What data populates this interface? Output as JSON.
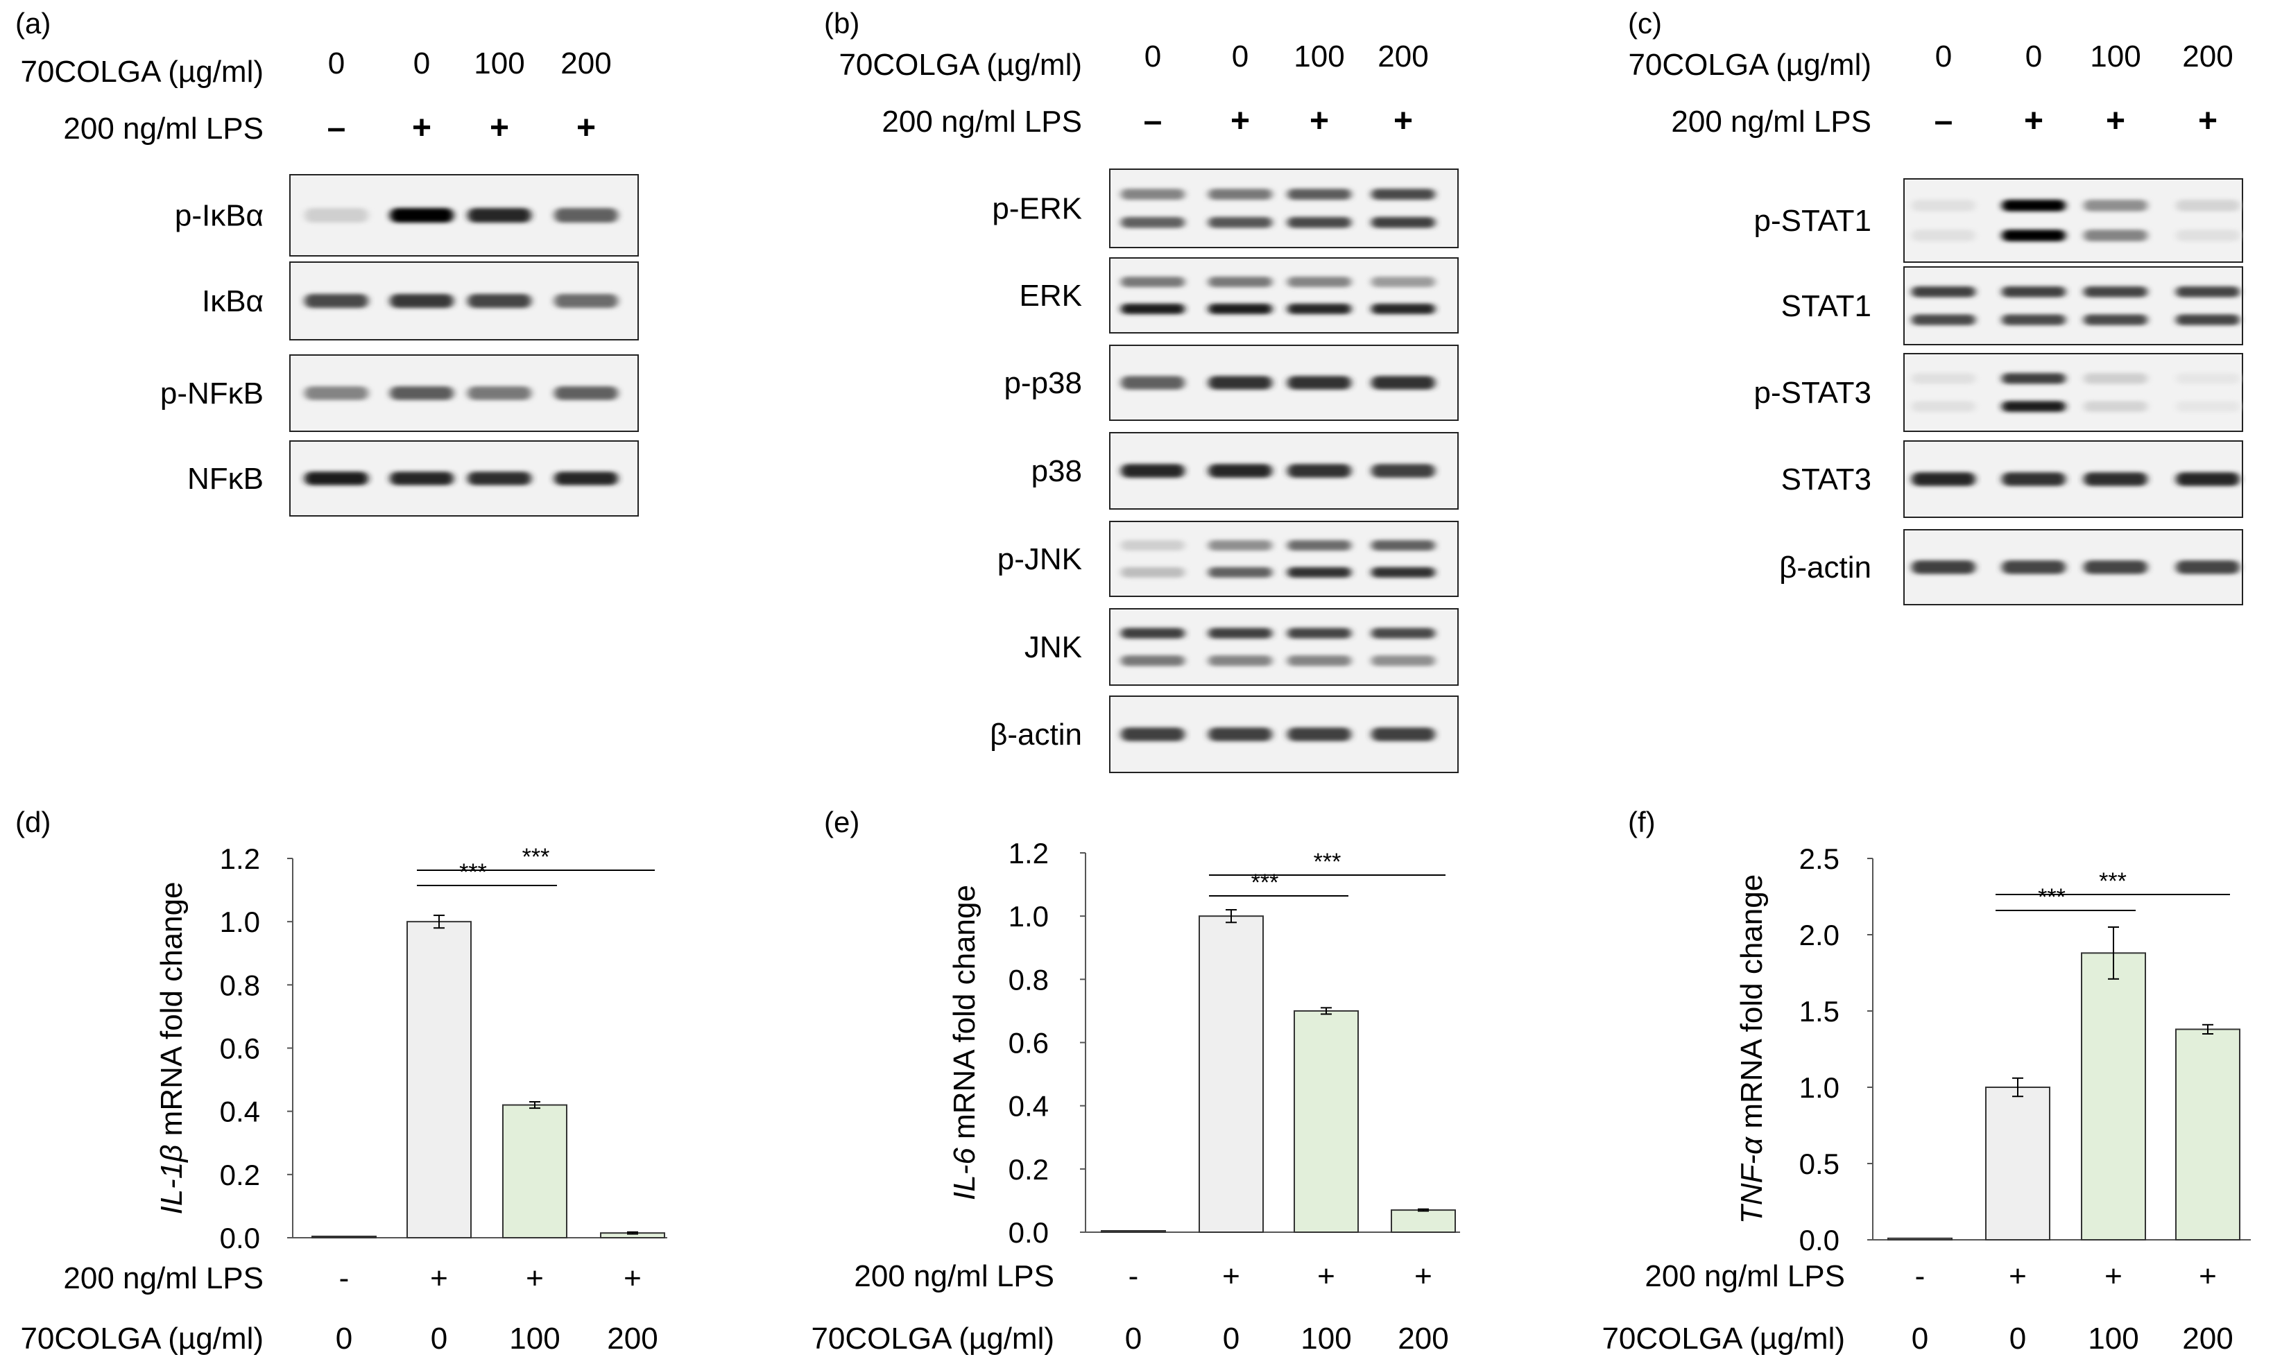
{
  "panels": [
    {
      "tag": "(a)",
      "treatment_label": "70COLGA (µg/ml)",
      "treatment_values": [
        "0",
        "0",
        "100",
        "200"
      ],
      "lps_label": "200 ng/ml LPS",
      "lps_values": [
        "-",
        "+",
        "+",
        "+"
      ],
      "blots": [
        {
          "label": "p-IκBα",
          "bands": [
            [
              0.12
            ],
            [
              1.0
            ],
            [
              0.85
            ],
            [
              0.6
            ]
          ]
        },
        {
          "label": "IκBα",
          "bands": [
            [
              0.7
            ],
            [
              0.78
            ],
            [
              0.72
            ],
            [
              0.55
            ]
          ]
        },
        {
          "label": "p-NFκB",
          "bands": [
            [
              0.45
            ],
            [
              0.62
            ],
            [
              0.5
            ],
            [
              0.6
            ]
          ]
        },
        {
          "label": "NFκB",
          "bands": [
            [
              0.9
            ],
            [
              0.85
            ],
            [
              0.82
            ],
            [
              0.85
            ]
          ]
        }
      ]
    },
    {
      "tag": "(b)",
      "treatment_label": "70COLGA (µg/ml)",
      "treatment_values": [
        "0",
        "0",
        "100",
        "200"
      ],
      "lps_label": "200 ng/ml LPS",
      "lps_values": [
        "-",
        "+",
        "+",
        "+"
      ],
      "blots": [
        {
          "label": "p-ERK",
          "bands": [
            [
              0.45,
              0.6
            ],
            [
              0.5,
              0.65
            ],
            [
              0.62,
              0.7
            ],
            [
              0.7,
              0.75
            ]
          ]
        },
        {
          "label": "ERK",
          "bands": [
            [
              0.5,
              0.9
            ],
            [
              0.5,
              0.9
            ],
            [
              0.45,
              0.85
            ],
            [
              0.35,
              0.85
            ]
          ]
        },
        {
          "label": "p-p38",
          "bands": [
            [
              0.6
            ],
            [
              0.8
            ],
            [
              0.8
            ],
            [
              0.8
            ]
          ]
        },
        {
          "label": "p38",
          "bands": [
            [
              0.85
            ],
            [
              0.85
            ],
            [
              0.8
            ],
            [
              0.75
            ]
          ]
        },
        {
          "label": "p-JNK",
          "bands": [
            [
              0.12,
              0.2
            ],
            [
              0.4,
              0.6
            ],
            [
              0.55,
              0.8
            ],
            [
              0.6,
              0.8
            ]
          ]
        },
        {
          "label": "JNK",
          "bands": [
            [
              0.75,
              0.5
            ],
            [
              0.75,
              0.45
            ],
            [
              0.72,
              0.45
            ],
            [
              0.7,
              0.4
            ]
          ]
        },
        {
          "label": "β-actin",
          "bands": [
            [
              0.75
            ],
            [
              0.75
            ],
            [
              0.75
            ],
            [
              0.75
            ]
          ]
        }
      ]
    },
    {
      "tag": "(c)",
      "treatment_label": "70COLGA (µg/ml)",
      "treatment_values": [
        "0",
        "0",
        "100",
        "200"
      ],
      "lps_label": "200 ng/ml LPS",
      "lps_values": [
        "-",
        "+",
        "+",
        "+"
      ],
      "blots": [
        {
          "label": "p-STAT1",
          "bands": [
            [
              0.05,
              0.05
            ],
            [
              1.0,
              1.0
            ],
            [
              0.4,
              0.45
            ],
            [
              0.1,
              0.05
            ]
          ]
        },
        {
          "label": "STAT1",
          "bands": [
            [
              0.75,
              0.7
            ],
            [
              0.75,
              0.7
            ],
            [
              0.72,
              0.7
            ],
            [
              0.72,
              0.72
            ]
          ]
        },
        {
          "label": "p-STAT3",
          "bands": [
            [
              0.05,
              0.05
            ],
            [
              0.75,
              0.9
            ],
            [
              0.12,
              0.1
            ],
            [
              0.02,
              0.02
            ]
          ]
        },
        {
          "label": "STAT3",
          "bands": [
            [
              0.85
            ],
            [
              0.8
            ],
            [
              0.82
            ],
            [
              0.85
            ]
          ]
        },
        {
          "label": "β-actin",
          "bands": [
            [
              0.75
            ],
            [
              0.72
            ],
            [
              0.72
            ],
            [
              0.72
            ]
          ]
        }
      ]
    }
  ],
  "chart_data": [
    {
      "type": "bar",
      "tag": "(d)",
      "ylabel_gene": "IL-1β",
      "ylabel_rest": " mRNA fold change",
      "yticks": [
        "0.0",
        "0.2",
        "0.4",
        "0.6",
        "0.8",
        "1.0",
        "1.2"
      ],
      "ylim": [
        0,
        1.2
      ],
      "lps_label": "200 ng/ml LPS",
      "lps_values": [
        "-",
        "+",
        "+",
        "+"
      ],
      "treatment_label": "70COLGA (µg/ml)",
      "treatment_values": [
        "0",
        "0",
        "100",
        "200"
      ],
      "values": [
        0.0,
        1.0,
        0.42,
        0.015
      ],
      "errors": [
        0.0,
        0.02,
        0.01,
        0.003
      ],
      "bar_colors": [
        "#efefef",
        "#efefef",
        "#e2efda",
        "#e2efda"
      ],
      "significance": [
        {
          "from": 1,
          "to": 2,
          "label": "***"
        },
        {
          "from": 1,
          "to": 3,
          "label": "***"
        }
      ]
    },
    {
      "type": "bar",
      "tag": "(e)",
      "ylabel_gene": "IL-6",
      "ylabel_rest": " mRNA fold change",
      "yticks": [
        "0.0",
        "0.2",
        "0.4",
        "0.6",
        "0.8",
        "1.0",
        "1.2"
      ],
      "ylim": [
        0,
        1.2
      ],
      "lps_label": "200 ng/ml LPS",
      "lps_values": [
        "-",
        "+",
        "+",
        "+"
      ],
      "treatment_label": "70COLGA (µg/ml)",
      "treatment_values": [
        "0",
        "0",
        "100",
        "200"
      ],
      "values": [
        0.0,
        1.0,
        0.7,
        0.07
      ],
      "errors": [
        0.0,
        0.02,
        0.01,
        0.003
      ],
      "bar_colors": [
        "#efefef",
        "#efefef",
        "#e2efda",
        "#e2efda"
      ],
      "significance": [
        {
          "from": 1,
          "to": 2,
          "label": "***"
        },
        {
          "from": 1,
          "to": 3,
          "label": "***"
        }
      ]
    },
    {
      "type": "bar",
      "tag": "(f)",
      "ylabel_gene": "TNF-α",
      "ylabel_rest": " mRNA fold change",
      "yticks": [
        "0.0",
        "0.5",
        "1.0",
        "1.5",
        "2.0",
        "2.5"
      ],
      "ylim": [
        0,
        2.5
      ],
      "lps_label": "200 ng/ml LPS",
      "lps_values": [
        "-",
        "+",
        "+",
        "+"
      ],
      "treatment_label": "70COLGA (µg/ml)",
      "treatment_values": [
        "0",
        "0",
        "100",
        "200"
      ],
      "values": [
        0.01,
        1.0,
        1.88,
        1.38
      ],
      "errors": [
        0.0,
        0.06,
        0.17,
        0.03
      ],
      "bar_colors": [
        "#efefef",
        "#efefef",
        "#e2efda",
        "#e2efda"
      ],
      "significance": [
        {
          "from": 1,
          "to": 2,
          "label": "***"
        },
        {
          "from": 1,
          "to": 3,
          "label": "***"
        }
      ]
    }
  ]
}
